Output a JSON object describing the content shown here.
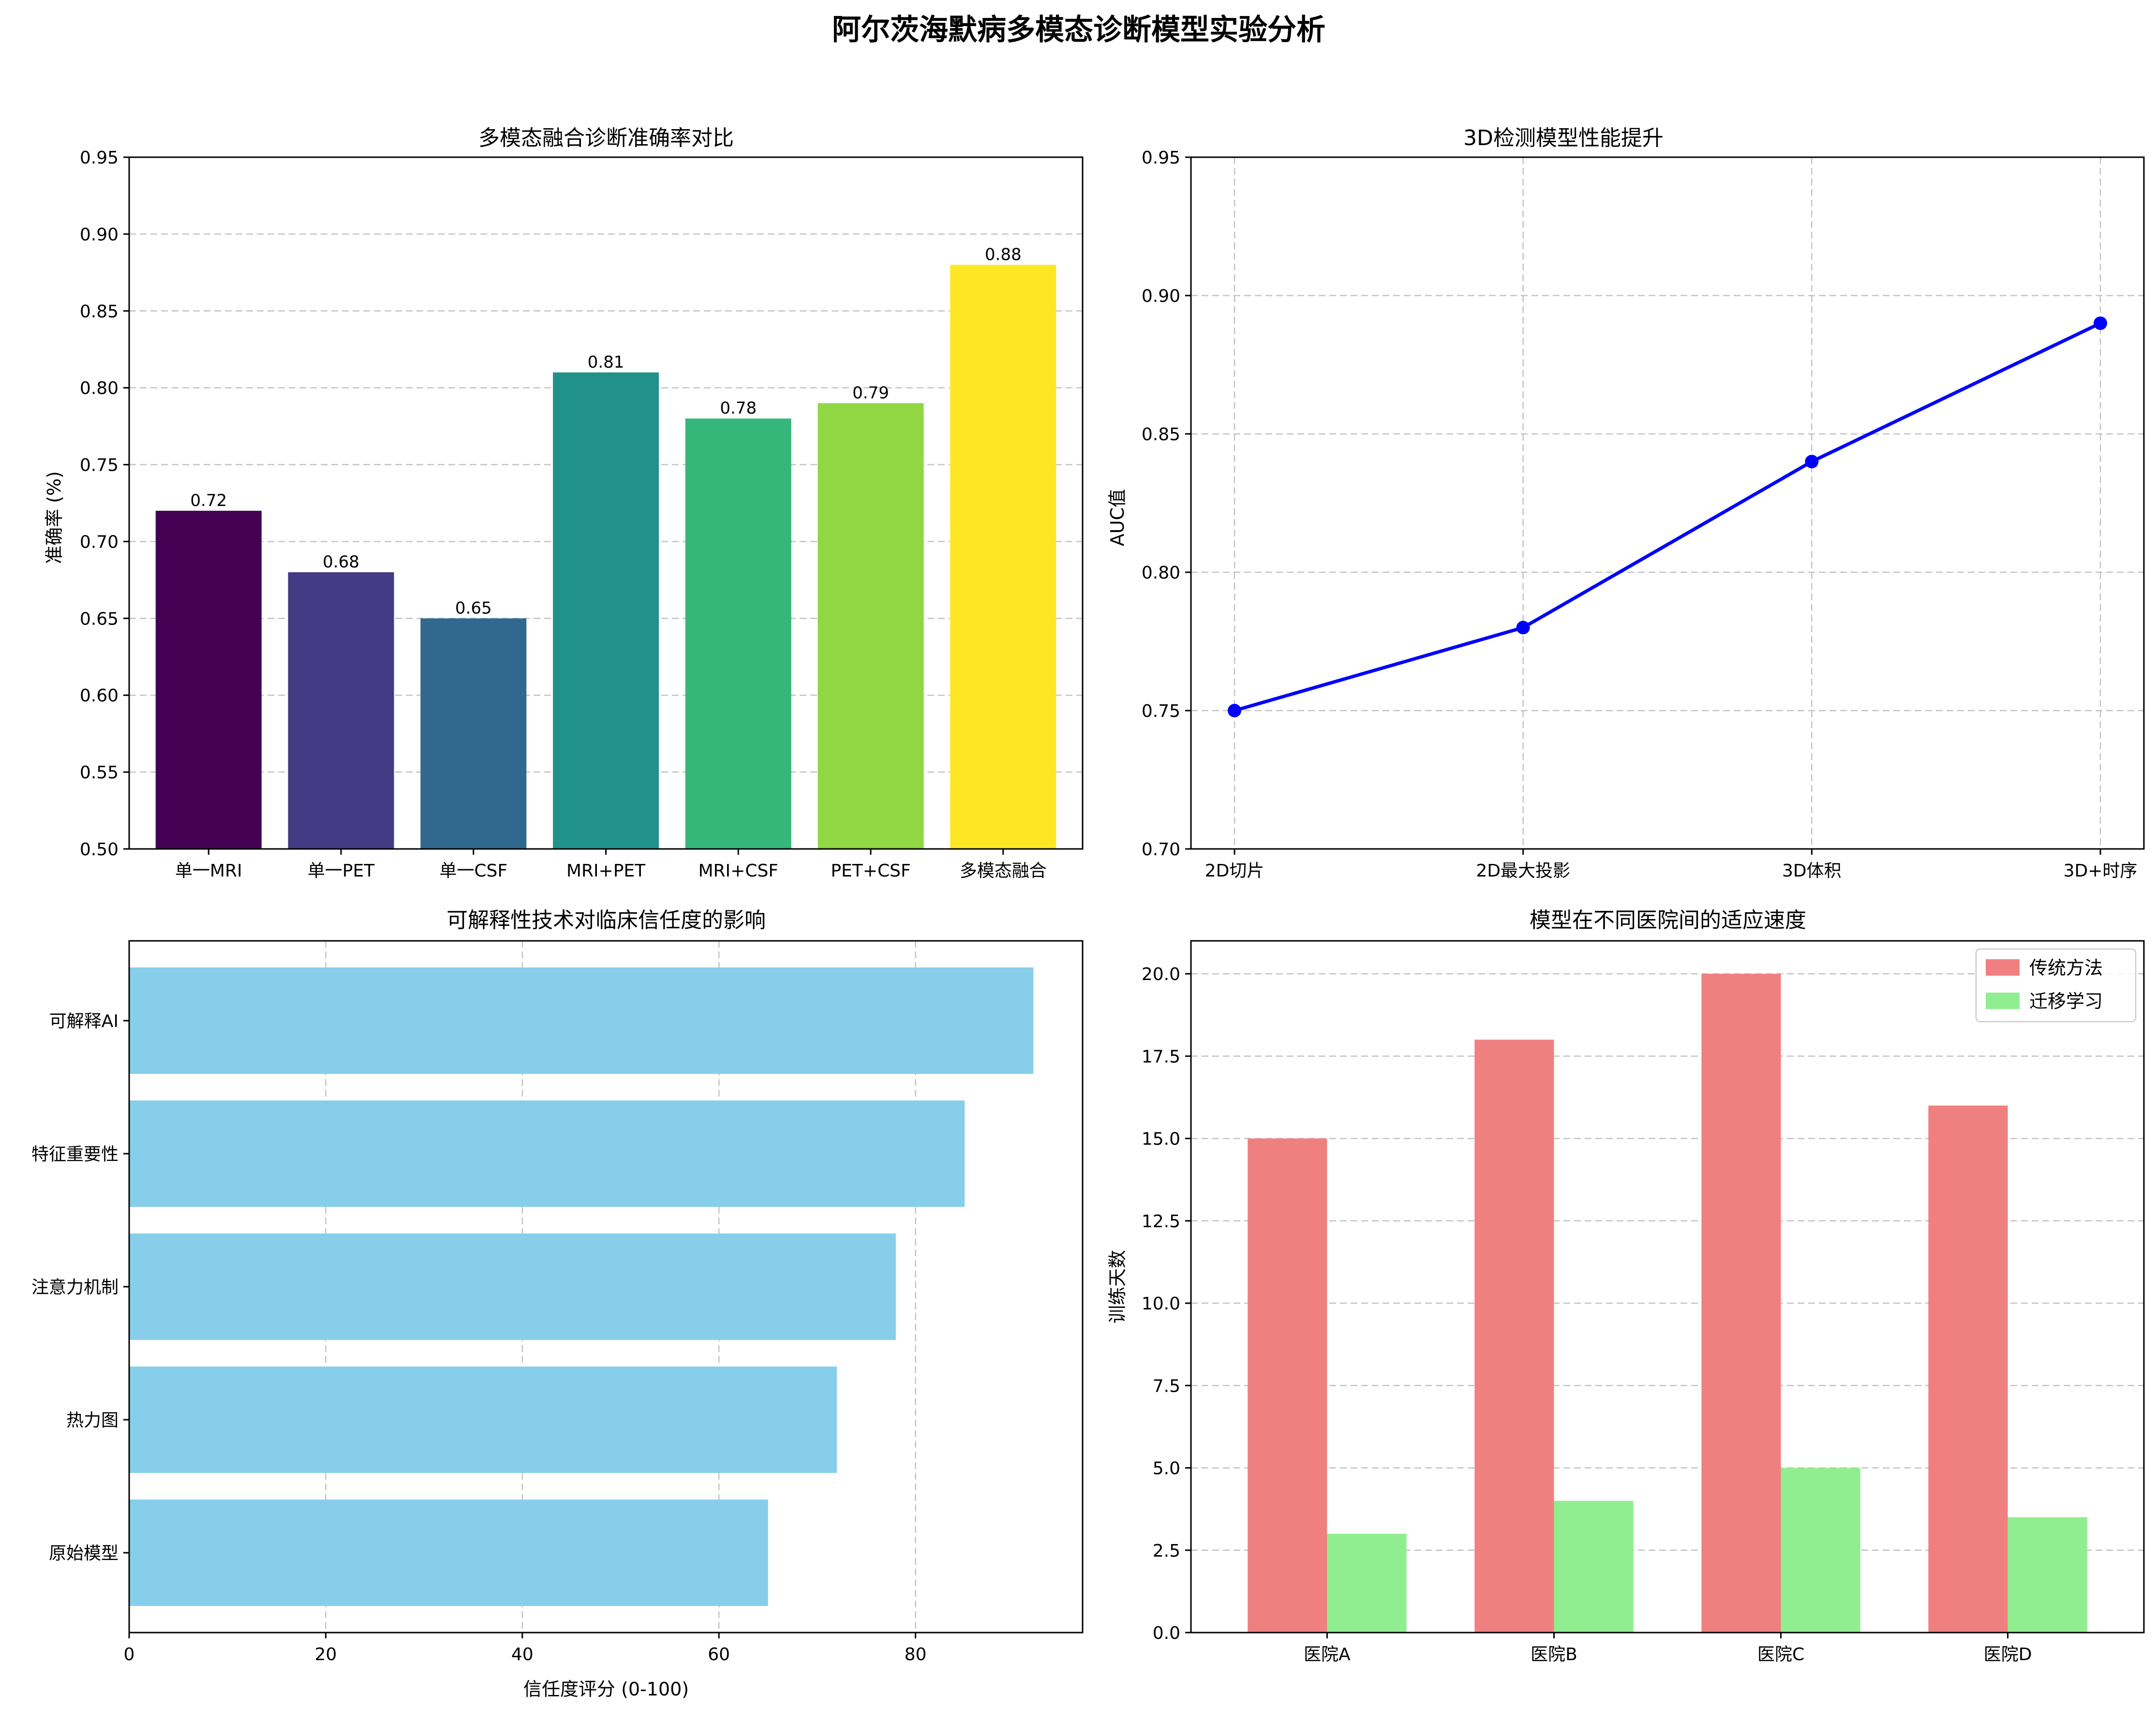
{
  "figure": {
    "title": "阿尔茨海默病多模态诊断模型实验分析"
  },
  "chart_data": [
    {
      "type": "bar",
      "title": "多模态融合诊断准确率对比",
      "xlabel": "",
      "ylabel": "准确率 (%)",
      "categories": [
        "单一MRI",
        "单一PET",
        "单一CSF",
        "MRI+PET",
        "MRI+CSF",
        "PET+CSF",
        "多模态融合"
      ],
      "values": [
        0.72,
        0.68,
        0.65,
        0.81,
        0.78,
        0.79,
        0.88
      ],
      "value_labels": [
        "0.72",
        "0.68",
        "0.65",
        "0.81",
        "0.78",
        "0.79",
        "0.88"
      ],
      "colors": [
        "#440154",
        "#443983",
        "#31688e",
        "#21918c",
        "#35b779",
        "#90d743",
        "#fde725"
      ],
      "ylim": [
        0.5,
        0.95
      ],
      "yticks": [
        "0.50",
        "0.55",
        "0.60",
        "0.65",
        "0.70",
        "0.75",
        "0.80",
        "0.85",
        "0.90",
        "0.95"
      ],
      "grid": "y"
    },
    {
      "type": "line",
      "title": "3D检测模型性能提升",
      "xlabel": "",
      "ylabel": "AUC值",
      "categories": [
        "2D切片",
        "2D最大投影",
        "3D体积",
        "3D+时序"
      ],
      "values": [
        0.75,
        0.78,
        0.84,
        0.89
      ],
      "color": "#0000ff",
      "ylim": [
        0.7,
        0.95
      ],
      "yticks": [
        "0.70",
        "0.75",
        "0.80",
        "0.85",
        "0.90",
        "0.95"
      ],
      "grid": "both"
    },
    {
      "type": "barh",
      "title": "可解释性技术对临床信任度的影响",
      "xlabel": "信任度评分 (0-100)",
      "ylabel": "",
      "categories": [
        "可解释AI",
        "特征重要性",
        "注意力机制",
        "热力图",
        "原始模型"
      ],
      "values": [
        92,
        85,
        78,
        72,
        65
      ],
      "color": "#87ceeb",
      "xlim": [
        0,
        97
      ],
      "xticks": [
        "0",
        "20",
        "40",
        "60",
        "80"
      ],
      "grid": "x"
    },
    {
      "type": "bar",
      "title": "模型在不同医院间的适应速度",
      "xlabel": "",
      "ylabel": "训练天数",
      "categories": [
        "医院A",
        "医院B",
        "医院C",
        "医院D"
      ],
      "series": [
        {
          "name": "传统方法",
          "values": [
            15,
            18,
            20,
            16
          ],
          "color": "#f08080"
        },
        {
          "name": "迁移学习",
          "values": [
            3,
            4,
            5,
            3.5
          ],
          "color": "#90ee90"
        }
      ],
      "ylim": [
        0,
        21
      ],
      "yticks": [
        "0.0",
        "2.5",
        "5.0",
        "7.5",
        "10.0",
        "12.5",
        "15.0",
        "17.5",
        "20.0"
      ],
      "legend": "top-right",
      "grid": "y"
    }
  ]
}
